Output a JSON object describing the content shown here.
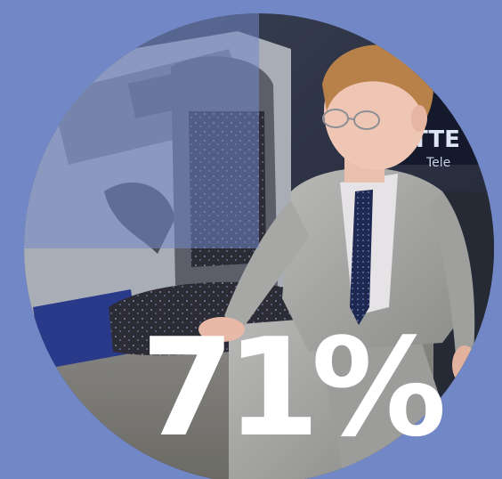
{
  "stat": {
    "value": "71%",
    "fraction": 0.71,
    "text_color": "#ffffff"
  },
  "colors": {
    "background": "#7287c6",
    "overlay": "#7287c6"
  },
  "photo": {
    "description_icon": "person-seated-in-car-seat-photo"
  }
}
